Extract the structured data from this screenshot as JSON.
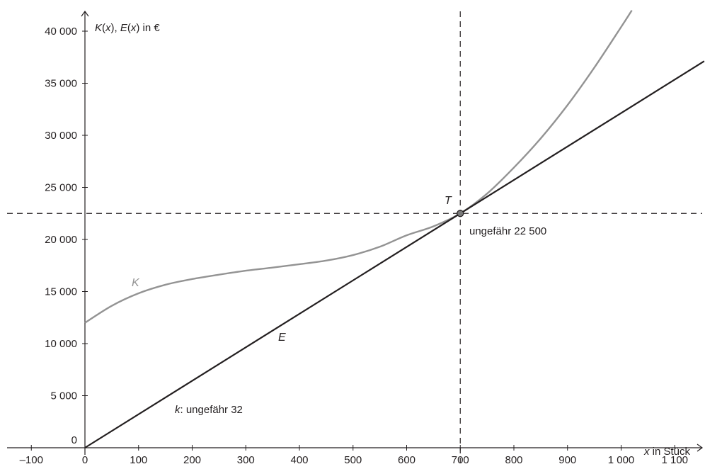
{
  "chart_data": {
    "type": "line",
    "xlim": [
      -140,
      1155
    ],
    "ylim": [
      -700,
      41500
    ],
    "x_ticks": [
      -100,
      0,
      100,
      200,
      300,
      400,
      500,
      600,
      700,
      800,
      900,
      1000,
      1100
    ],
    "x_tick_labels": [
      "–100",
      "0",
      "100",
      "200",
      "300",
      "400",
      "500",
      "600",
      "700",
      "800",
      "900",
      "1 000",
      "1 100"
    ],
    "y_ticks": [
      0,
      5000,
      10000,
      15000,
      20000,
      25000,
      30000,
      35000,
      40000
    ],
    "y_tick_labels": [
      "0",
      "5 000",
      "10 000",
      "15 000",
      "20 000",
      "25 000",
      "30 000",
      "35 000",
      "40 000"
    ],
    "xlabel": {
      "var": "x",
      "rest": " in Stück"
    },
    "ylabel": {
      "k": "K",
      "x1": "x",
      "mid": "), ",
      "e": "E",
      "x2": "x",
      "end": ") in €"
    },
    "grid": false,
    "series": [
      {
        "name": "K",
        "color": "#939393",
        "x": [
          0,
          50,
          100,
          150,
          200,
          250,
          300,
          350,
          400,
          450,
          500,
          550,
          600,
          650,
          700,
          750,
          800,
          850,
          900,
          950,
          1000,
          1020
        ],
        "y": [
          12000,
          13630,
          14830,
          15650,
          16200,
          16620,
          17000,
          17300,
          17620,
          17970,
          18500,
          19300,
          20400,
          21260,
          22500,
          24400,
          26900,
          29700,
          32900,
          36500,
          40400,
          42000
        ]
      },
      {
        "name": "E",
        "color": "#231f20",
        "x": [
          0,
          1155
        ],
        "y": [
          0,
          37120
        ]
      }
    ],
    "point_T": {
      "label": "T",
      "x": 700,
      "y": 22500
    },
    "annotations": {
      "y_value": "ungefähr 22 500",
      "slope_var": "k",
      "slope_rest": ": ungefähr 32"
    },
    "label_K": "K",
    "label_E": "E"
  }
}
